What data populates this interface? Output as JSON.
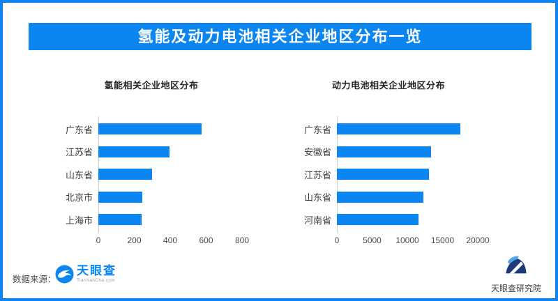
{
  "colors": {
    "accent_blue": "#0b86f1",
    "bar_blue": "#0986f1",
    "axis_gray": "#cfcfcf",
    "logo_navy": "#1d3a7a",
    "logo_lightblue": "#4ba7e9"
  },
  "banner": {
    "title": "氢能及动力电池相关企业地区分布一览"
  },
  "chart_data": [
    {
      "type": "bar",
      "orientation": "horizontal",
      "title": "氢能相关企业地区分布",
      "categories": [
        "广东省",
        "江苏省",
        "山东省",
        "北京市",
        "上海市"
      ],
      "values": [
        575,
        395,
        300,
        245,
        240
      ],
      "xlabel": "",
      "ylabel": "",
      "xlim": [
        0,
        800
      ],
      "xticks": [
        0,
        200,
        400,
        600,
        800
      ],
      "grid": false,
      "legend": null,
      "bar_color": "#0986f1"
    },
    {
      "type": "bar",
      "orientation": "horizontal",
      "title": "动力电池相关企业地区分布",
      "categories": [
        "广东省",
        "安徽省",
        "江苏省",
        "山东省",
        "河南省"
      ],
      "values": [
        17500,
        13400,
        13050,
        12250,
        11550
      ],
      "xlabel": "",
      "ylabel": "",
      "xlim": [
        0,
        20000
      ],
      "xticks": [
        0,
        5000,
        10000,
        15000,
        20000
      ],
      "grid": false,
      "legend": null,
      "bar_color": "#0986f1"
    }
  ],
  "footer": {
    "source_label": "数据来源：",
    "tianyancha_logo": {
      "icon": "tianyancha-eye-icon",
      "name": "天眼查",
      "url_text": "TianYanCha.com"
    },
    "research_logo": {
      "icon": "tianyancha-research-icon",
      "name": "天眼查研究院"
    }
  }
}
